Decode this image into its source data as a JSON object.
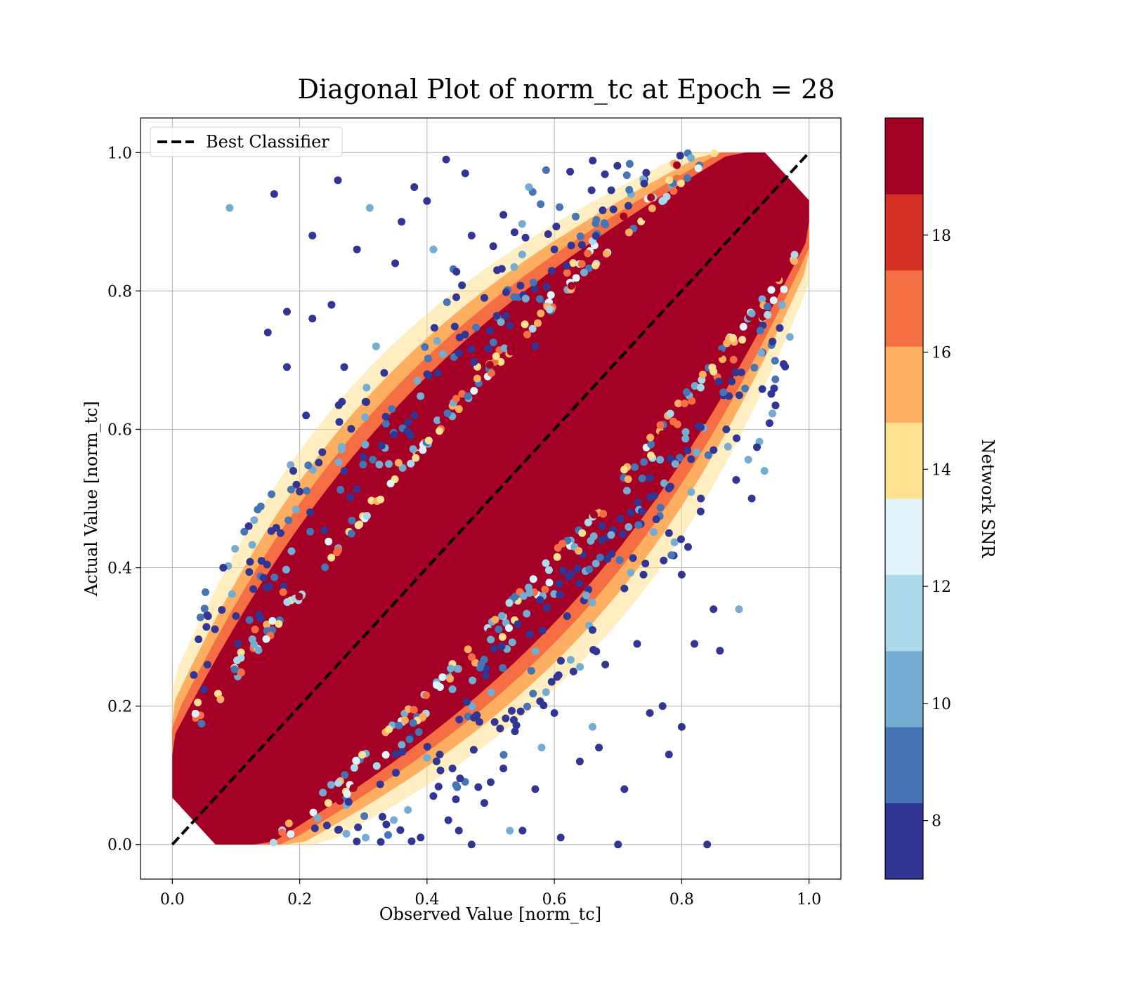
{
  "chart_data": {
    "type": "scatter",
    "title": "Diagonal Plot of norm_tc at Epoch = 28",
    "xlabel": "Observed Value [norm_tc]",
    "ylabel": "Actual Value [norm_tc]",
    "xlim": [
      -0.05,
      1.05
    ],
    "ylim": [
      -0.05,
      1.05
    ],
    "xticks": [
      0.0,
      0.2,
      0.4,
      0.6,
      0.8,
      1.0
    ],
    "xtick_labels": [
      "0.0",
      "0.2",
      "0.4",
      "0.6",
      "0.8",
      "1.0"
    ],
    "yticks": [
      0.0,
      0.2,
      0.4,
      0.6,
      0.8,
      1.0
    ],
    "ytick_labels": [
      "0.0",
      "0.2",
      "0.4",
      "0.6",
      "0.8",
      "1.0"
    ],
    "grid": true,
    "legend": {
      "position": "top-left",
      "entries": [
        "Best Classifier"
      ]
    },
    "reference_line": {
      "name": "Best Classifier",
      "style": "dashed",
      "color": "#000000",
      "x": [
        0.0,
        1.0
      ],
      "y": [
        0.0,
        1.0
      ]
    },
    "colorbar": {
      "label": "Network SNR",
      "range": [
        7,
        20
      ],
      "ticks": [
        8,
        10,
        12,
        14,
        16,
        18
      ],
      "tick_labels": [
        "8",
        "10",
        "12",
        "14",
        "16",
        "18"
      ],
      "colors": [
        "#313695",
        "#4575b4",
        "#74add1",
        "#abd9e9",
        "#e0f3f8",
        "#fee090",
        "#fdae61",
        "#f46d43",
        "#d73027",
        "#a50026"
      ]
    },
    "scatter_summary": {
      "relation": "points cluster tightly along y = x, high-SNR points (dark red) on the diagonal band, low-SNR points (blue) scattered further away",
      "x_range": [
        0.0,
        1.0
      ],
      "y_range": [
        0.0,
        1.0
      ]
    },
    "outliers": [
      {
        "x": 0.09,
        "y": 0.92
      },
      {
        "x": 0.15,
        "y": 0.74
      },
      {
        "x": 0.18,
        "y": 0.77
      },
      {
        "x": 0.16,
        "y": 0.94
      },
      {
        "x": 0.22,
        "y": 0.88
      },
      {
        "x": 0.26,
        "y": 0.96
      },
      {
        "x": 0.29,
        "y": 0.86
      },
      {
        "x": 0.32,
        "y": 0.72
      },
      {
        "x": 0.25,
        "y": 0.78
      },
      {
        "x": 0.22,
        "y": 0.76
      },
      {
        "x": 0.35,
        "y": 0.84
      },
      {
        "x": 0.38,
        "y": 0.95
      },
      {
        "x": 0.43,
        "y": 0.99
      },
      {
        "x": 0.46,
        "y": 0.97
      },
      {
        "x": 0.41,
        "y": 0.86
      },
      {
        "x": 0.12,
        "y": 0.46
      },
      {
        "x": 0.19,
        "y": 0.54
      },
      {
        "x": 0.21,
        "y": 0.62
      },
      {
        "x": 0.08,
        "y": 0.4
      },
      {
        "x": 0.27,
        "y": 0.69
      },
      {
        "x": 0.18,
        "y": 0.69
      },
      {
        "x": 0.93,
        "y": 0.54
      },
      {
        "x": 0.91,
        "y": 0.5
      },
      {
        "x": 0.85,
        "y": 0.57
      },
      {
        "x": 0.83,
        "y": 0.5
      },
      {
        "x": 0.8,
        "y": 0.39
      },
      {
        "x": 0.82,
        "y": 0.29
      },
      {
        "x": 0.86,
        "y": 0.28
      },
      {
        "x": 0.89,
        "y": 0.34
      },
      {
        "x": 0.85,
        "y": 0.34
      },
      {
        "x": 0.84,
        "y": 0.0
      },
      {
        "x": 0.7,
        "y": 0.0
      },
      {
        "x": 0.78,
        "y": 0.13
      },
      {
        "x": 0.8,
        "y": 0.17
      },
      {
        "x": 0.71,
        "y": 0.08
      },
      {
        "x": 0.66,
        "y": 0.17
      },
      {
        "x": 0.64,
        "y": 0.12
      },
      {
        "x": 0.61,
        "y": 0.01
      },
      {
        "x": 0.57,
        "y": 0.08
      },
      {
        "x": 0.5,
        "y": 0.09
      },
      {
        "x": 0.47,
        "y": 0.0
      },
      {
        "x": 0.44,
        "y": 0.11
      },
      {
        "x": 0.53,
        "y": 0.02
      },
      {
        "x": 0.73,
        "y": 0.29
      },
      {
        "x": 0.75,
        "y": 0.19
      },
      {
        "x": 0.77,
        "y": 0.2
      },
      {
        "x": 0.67,
        "y": 0.14
      },
      {
        "x": 0.55,
        "y": 0.02
      },
      {
        "x": 0.62,
        "y": 0.33
      },
      {
        "x": 0.65,
        "y": 0.36
      },
      {
        "x": 0.72,
        "y": 0.48
      },
      {
        "x": 0.78,
        "y": 0.45
      },
      {
        "x": 0.69,
        "y": 0.42
      },
      {
        "x": 0.66,
        "y": 0.31
      },
      {
        "x": 0.87,
        "y": 0.6
      },
      {
        "x": 0.81,
        "y": 0.43
      },
      {
        "x": 0.34,
        "y": 0.55
      },
      {
        "x": 0.3,
        "y": 0.56
      },
      {
        "x": 0.38,
        "y": 0.62
      },
      {
        "x": 0.27,
        "y": 0.54
      },
      {
        "x": 0.4,
        "y": 0.93
      },
      {
        "x": 0.47,
        "y": 0.88
      },
      {
        "x": 0.52,
        "y": 0.91
      },
      {
        "x": 0.56,
        "y": 0.95
      },
      {
        "x": 0.49,
        "y": 0.79
      },
      {
        "x": 0.45,
        "y": 0.71
      },
      {
        "x": 0.51,
        "y": 0.83
      },
      {
        "x": 0.6,
        "y": 0.86
      },
      {
        "x": 0.57,
        "y": 0.72
      },
      {
        "x": 0.53,
        "y": 0.75
      },
      {
        "x": 0.31,
        "y": 0.92
      },
      {
        "x": 0.36,
        "y": 0.9
      },
      {
        "x": 0.14,
        "y": 0.41
      },
      {
        "x": 0.1,
        "y": 0.33
      },
      {
        "x": 0.17,
        "y": 0.45
      },
      {
        "x": 0.2,
        "y": 0.51
      },
      {
        "x": 0.33,
        "y": 0.04
      },
      {
        "x": 0.37,
        "y": 0.05
      },
      {
        "x": 0.41,
        "y": 0.07
      },
      {
        "x": 0.42,
        "y": 0.13
      },
      {
        "x": 0.39,
        "y": 0.01
      },
      {
        "x": 0.45,
        "y": 0.02
      },
      {
        "x": 0.49,
        "y": 0.06
      },
      {
        "x": 0.52,
        "y": 0.11
      },
      {
        "x": 0.58,
        "y": 0.14
      },
      {
        "x": 0.6,
        "y": 0.19
      },
      {
        "x": 0.63,
        "y": 0.25
      },
      {
        "x": 0.68,
        "y": 0.26
      },
      {
        "x": 0.71,
        "y": 0.37
      },
      {
        "x": 0.74,
        "y": 0.39
      },
      {
        "x": 0.76,
        "y": 0.47
      },
      {
        "x": 0.79,
        "y": 0.55
      }
    ]
  }
}
